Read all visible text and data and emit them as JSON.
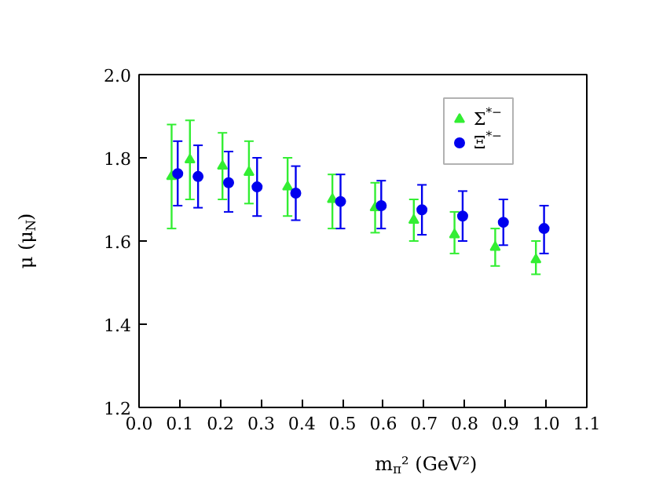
{
  "chart_data": {
    "type": "scatter",
    "xlabel": "m$_{π}$² (GeV²)",
    "ylabel": "μ (μ$_{N}$)",
    "xlim": [
      0.0,
      1.1
    ],
    "xticks": [
      {
        "value": 0.0,
        "label": "0.0"
      },
      0.1,
      0.2,
      0.3,
      0.4,
      0.5,
      0.6,
      0.7,
      0.8,
      0.9,
      {
        "value": 1.0,
        "label": "1.0"
      },
      1.1
    ],
    "ylim": [
      1.2,
      2.0
    ],
    "yticks": [
      1.2,
      1.4,
      1.6,
      1.8,
      {
        "value": 2.0,
        "label": "2.0"
      }
    ],
    "grid": false,
    "legend": "top right",
    "series": [
      {
        "name": "Σ$^{*−}$",
        "color": "#33ee33",
        "marker": "triangle",
        "x": [
          0.08,
          0.125,
          0.205,
          0.27,
          0.365,
          0.475,
          0.58,
          0.675,
          0.775,
          0.875,
          0.975
        ],
        "values": [
          1.755,
          1.795,
          1.78,
          1.765,
          1.73,
          1.7,
          1.68,
          1.65,
          1.615,
          1.585,
          1.555
        ],
        "errors": [
          [
            1.63,
            1.88
          ],
          [
            1.7,
            1.89
          ],
          [
            1.7,
            1.86
          ],
          [
            1.69,
            1.84
          ],
          [
            1.66,
            1.8
          ],
          [
            1.63,
            1.76
          ],
          [
            1.62,
            1.74
          ],
          [
            1.6,
            1.7
          ],
          [
            1.57,
            1.67
          ],
          [
            1.54,
            1.63
          ],
          [
            1.52,
            1.6
          ]
        ]
      },
      {
        "name": "Ξ$^{*−}$",
        "color": "#0000ee",
        "marker": "circle",
        "x": [
          0.095,
          0.145,
          0.22,
          0.29,
          0.385,
          0.495,
          0.595,
          0.695,
          0.795,
          0.895,
          0.995
        ],
        "values": [
          1.762,
          1.755,
          1.74,
          1.73,
          1.715,
          1.695,
          1.685,
          1.675,
          1.66,
          1.645,
          1.63
        ],
        "errors": [
          [
            1.685,
            1.84
          ],
          [
            1.68,
            1.83
          ],
          [
            1.67,
            1.815
          ],
          [
            1.66,
            1.8
          ],
          [
            1.65,
            1.78
          ],
          [
            1.63,
            1.76
          ],
          [
            1.63,
            1.745
          ],
          [
            1.615,
            1.735
          ],
          [
            1.6,
            1.72
          ],
          [
            1.59,
            1.7
          ],
          [
            1.57,
            1.685
          ]
        ]
      }
    ]
  }
}
